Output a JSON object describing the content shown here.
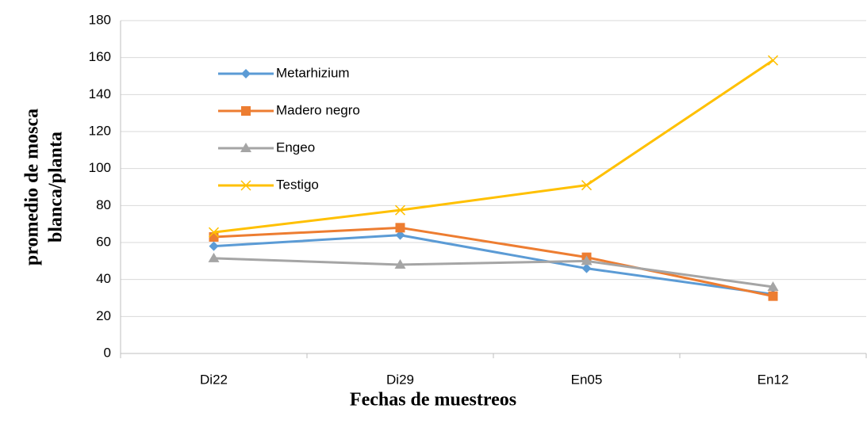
{
  "chart_data": {
    "type": "line",
    "ylabel": [
      "promedio de mosca",
      "blanca/planta"
    ],
    "xlabel": "Fechas de muestreos",
    "categories": [
      "Di22",
      "Di29",
      "En05",
      "En12"
    ],
    "series": [
      {
        "name": "Metarhizium",
        "color": "#5b9bd5",
        "marker": "diamond",
        "values": [
          58,
          64,
          46,
          32
        ]
      },
      {
        "name": "Madero negro",
        "color": "#ed7d31",
        "marker": "square",
        "values": [
          63,
          68,
          52,
          31
        ]
      },
      {
        "name": "Engeo",
        "color": "#a5a5a5",
        "marker": "triangle",
        "values": [
          51.5,
          48,
          50,
          36
        ]
      },
      {
        "name": "Testigo",
        "color": "#ffc000",
        "marker": "x",
        "values": [
          65.5,
          77.5,
          91,
          158.5
        ]
      }
    ],
    "ylim": [
      0,
      180
    ],
    "yticks": [
      0,
      20,
      40,
      60,
      80,
      100,
      120,
      140,
      160,
      180
    ],
    "grid": true,
    "legend": "upper left"
  }
}
